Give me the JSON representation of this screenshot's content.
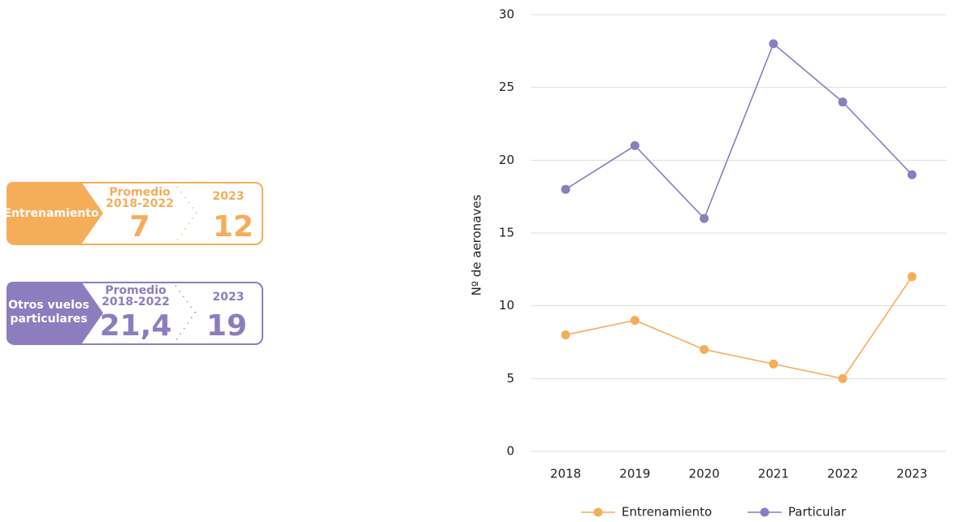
{
  "cards": [
    {
      "label_lines": [
        "Entrenamiento"
      ],
      "avg_label": "Promedio",
      "avg_period": "2018-2022",
      "avg_value": "7",
      "year": "2023",
      "year_value": "12"
    },
    {
      "label_lines": [
        "Otros vuelos",
        "particulares"
      ],
      "avg_label": "Promedio",
      "avg_period": "2018-2022",
      "avg_value": "21,4",
      "year": "2023",
      "year_value": "19"
    }
  ],
  "chart_data": {
    "type": "line",
    "ylabel": "Nº de aeronaves",
    "categories": [
      "2018",
      "2019",
      "2020",
      "2021",
      "2022",
      "2023"
    ],
    "series": [
      {
        "name": "Entrenamiento",
        "color": "#f5ad5a",
        "values": [
          8,
          9,
          7,
          6,
          5,
          12
        ]
      },
      {
        "name": "Particular",
        "color": "#8c7dbf",
        "values": [
          18,
          21,
          16,
          28,
          24,
          19
        ]
      }
    ],
    "ylim": [
      0,
      30
    ],
    "yticks": [
      0,
      5,
      10,
      15,
      20,
      25,
      30
    ],
    "grid": true,
    "legend": "bottom"
  }
}
